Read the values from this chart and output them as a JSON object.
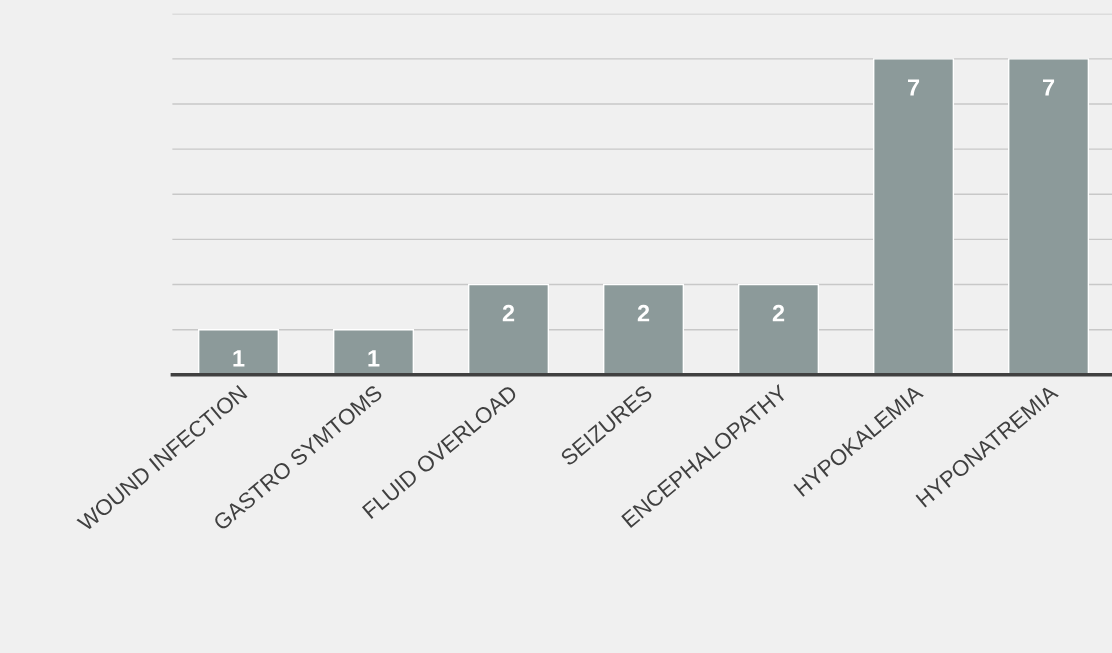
{
  "chart_data": {
    "type": "bar",
    "categories": [
      "WOUND INFECTION",
      "GASTRO SYMTOMS",
      "FLUID OVERLOAD",
      "SEIZURES",
      "ENCEPHALOPATHY",
      "HYPOKALEMIA",
      "HYPONATREMIA"
    ],
    "values": [
      1,
      1,
      2,
      2,
      2,
      7,
      7
    ],
    "color": "#8c9a9a",
    "ylim": [
      0,
      8
    ],
    "yticks": [
      {
        "value": 0,
        "label": null
      },
      {
        "value": 1,
        "label": null
      },
      {
        "value": 2,
        "label": null
      },
      {
        "value": 3,
        "label": null
      },
      {
        "value": 4,
        "label": null
      },
      {
        "value": 5,
        "label": null
      },
      {
        "value": 6,
        "label": null
      },
      {
        "value": 7,
        "label": null
      },
      {
        "value": 8,
        "label": null
      }
    ],
    "grid": "y",
    "tick_labels": "x",
    "data_labels": true
  }
}
